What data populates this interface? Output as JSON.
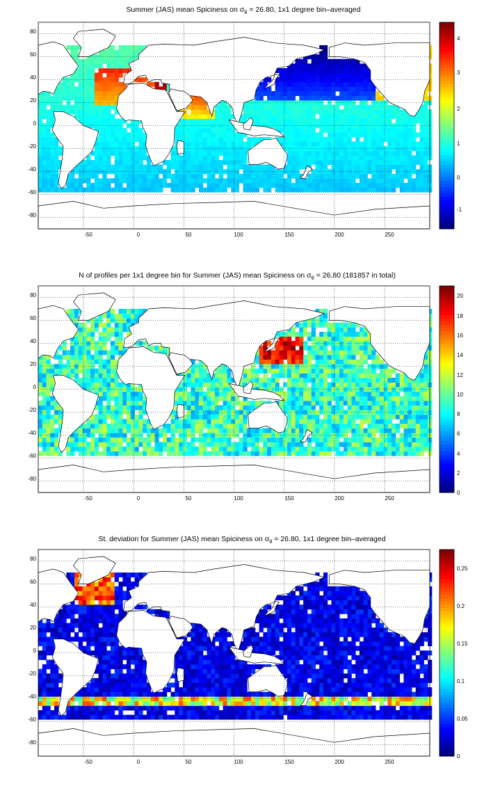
{
  "figure": {
    "panels": [
      {
        "id": "mean",
        "title_prefix": "Summer (JAS) mean Spiciness on ",
        "title_symbol": "σ",
        "title_subscript": "θ",
        "title_suffix": " = 26.80, 1x1 degree bin–averaged",
        "field": "mean",
        "colorbar": {
          "ticks": [
            -1,
            0,
            1,
            2,
            3,
            4
          ],
          "range": [
            -1.5,
            4.5
          ]
        }
      },
      {
        "id": "count",
        "title_prefix": "N of profiles per 1x1 degree bin for Summer (JAS) mean Spiciness on ",
        "title_symbol": "σ",
        "title_subscript": "θ",
        "title_suffix": " = 26.80 (181857 in total)",
        "field": "count",
        "colorbar": {
          "ticks": [
            0,
            2,
            4,
            6,
            8,
            10,
            12,
            14,
            16,
            18,
            20
          ],
          "range": [
            0,
            21
          ]
        }
      },
      {
        "id": "std",
        "title_prefix": "St. deviation for Summer (JAS) mean Spiciness on ",
        "title_symbol": "σ",
        "title_subscript": "θ",
        "title_suffix": " = 26.80, 1x1 degree bin–averaged",
        "field": "std",
        "colorbar": {
          "ticks": [
            0,
            0.05,
            0.1,
            0.15,
            0.2,
            0.25
          ],
          "range": [
            0,
            0.275
          ]
        }
      }
    ],
    "axes": {
      "x_ticks": [
        -50,
        0,
        50,
        100,
        150,
        200,
        250
      ],
      "y_ticks": [
        80,
        60,
        40,
        20,
        0,
        -20,
        -40,
        -60,
        -80
      ],
      "x_range": [
        -95,
        295
      ],
      "y_range": [
        -90,
        90
      ],
      "grid": "dotted"
    },
    "colormap": "jet"
  }
}
